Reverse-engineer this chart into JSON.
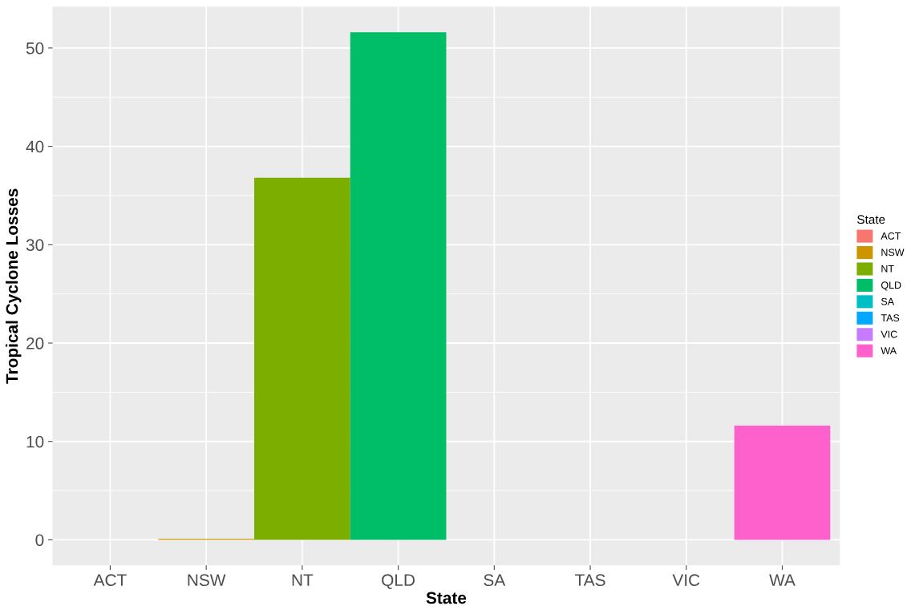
{
  "chart_data": {
    "type": "bar",
    "xlabel": "State",
    "ylabel": "Tropical Cyclone Losses",
    "legend_title": "State",
    "categories": [
      "ACT",
      "NSW",
      "NT",
      "QLD",
      "SA",
      "TAS",
      "VIC",
      "WA"
    ],
    "series": [
      {
        "name": "ACT",
        "color": "#f8766d",
        "values": [
          0,
          null,
          null,
          null,
          null,
          null,
          null,
          null
        ]
      },
      {
        "name": "NSW",
        "color": "#cd9600",
        "values": [
          null,
          0.1,
          null,
          null,
          null,
          null,
          null,
          null
        ]
      },
      {
        "name": "NT",
        "color": "#7cae00",
        "values": [
          null,
          null,
          36.8,
          null,
          null,
          null,
          null,
          null
        ]
      },
      {
        "name": "QLD",
        "color": "#00be67",
        "values": [
          null,
          null,
          null,
          51.6,
          null,
          null,
          null,
          null
        ]
      },
      {
        "name": "SA",
        "color": "#00bfc4",
        "values": [
          null,
          null,
          null,
          null,
          0,
          null,
          null,
          null
        ]
      },
      {
        "name": "TAS",
        "color": "#00a9ff",
        "values": [
          null,
          null,
          null,
          null,
          null,
          0,
          null,
          null
        ]
      },
      {
        "name": "VIC",
        "color": "#c77cff",
        "values": [
          null,
          null,
          null,
          null,
          null,
          null,
          0,
          null
        ]
      },
      {
        "name": "WA",
        "color": "#ff61cc",
        "values": [
          null,
          null,
          null,
          null,
          null,
          null,
          null,
          11.6
        ]
      }
    ],
    "ylim": [
      -2.6,
      54.2
    ],
    "yticks": [
      0,
      10,
      20,
      30,
      40,
      50
    ],
    "grid": true,
    "legend": "right"
  }
}
